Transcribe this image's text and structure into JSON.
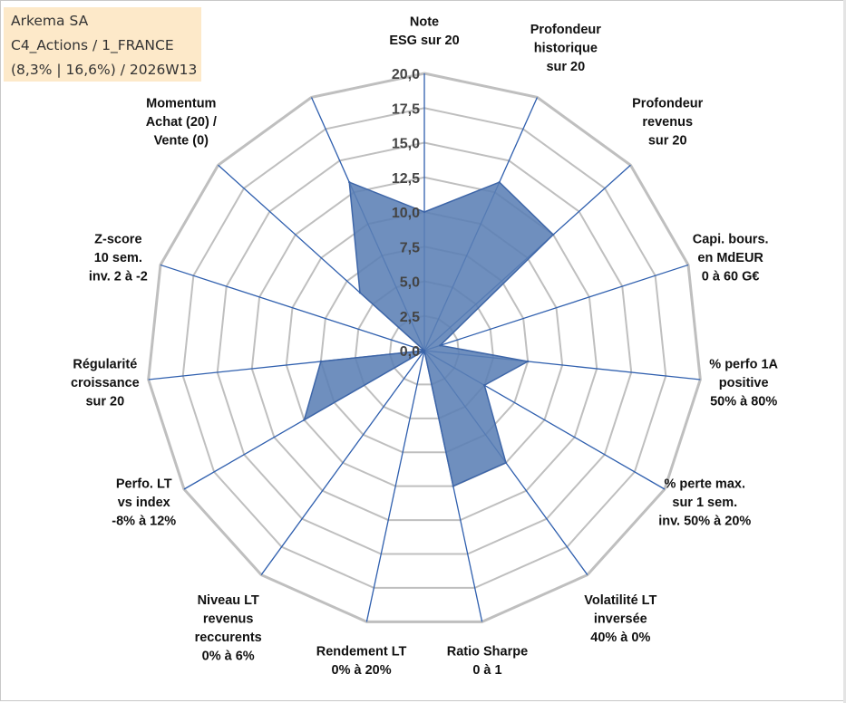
{
  "info_box": {
    "line1": "Arkema SA",
    "line2": "C4_Actions / 1_FRANCE",
    "line3": "(8,3% | 16,6%) / 2026W13"
  },
  "colors": {
    "grid": "#bfbfbf",
    "spoke": "#2f5fae",
    "fill": "#5b7fb5",
    "stroke": "#3e66a8"
  },
  "chart_data": {
    "type": "radar",
    "title": "",
    "rlim": [
      0,
      20
    ],
    "grid": true,
    "tick_labels": [
      "0,0",
      "2,5",
      "5,0",
      "7,5",
      "10,0",
      "12,5",
      "15,0",
      "17,5",
      "20,0"
    ],
    "axes": [
      {
        "label": [
          "Note",
          "ESG sur 20"
        ],
        "value": 10.0
      },
      {
        "label": [
          "Profondeur",
          "historique",
          "sur 20"
        ],
        "value": 13.3
      },
      {
        "label": [
          "Profondeur",
          "revenus",
          "sur 20"
        ],
        "value": 12.5
      },
      {
        "label": [
          "Capi. bours.",
          "en MdEUR",
          "0 à 60 G€"
        ],
        "value": 1.2
      },
      {
        "label": [
          "% perfo 1A",
          "positive",
          "50% à 80%"
        ],
        "value": 7.5
      },
      {
        "label": [
          "% perte max.",
          "sur 1 sem.",
          "inv. 50% à 20%"
        ],
        "value": 5.0
      },
      {
        "label": [
          "Volatilité LT",
          "inversée",
          "40% à 0%"
        ],
        "value": 10.0
      },
      {
        "label": [
          "Ratio Sharpe",
          "0 à 1"
        ],
        "value": 10.0
      },
      {
        "label": [
          "Rendement LT",
          "0% à 20%"
        ],
        "value": 0.0
      },
      {
        "label": [
          "Niveau LT",
          "revenus",
          "reccurents",
          "0% à 6%"
        ],
        "value": 0.0
      },
      {
        "label": [
          "Perfo. LT",
          "vs index",
          "-8% à 12%"
        ],
        "value": 10.0
      },
      {
        "label": [
          "Régularité",
          "croissance",
          "sur 20"
        ],
        "value": 7.5
      },
      {
        "label": [
          "Z-score",
          "10 sem.",
          "inv. 2 à -2"
        ],
        "value": 0.0
      },
      {
        "label": [
          "Momentum",
          "Achat (20) /",
          "Vente (0)"
        ],
        "value": 6.25
      },
      {
        "label": [],
        "value": 13.3
      }
    ]
  }
}
